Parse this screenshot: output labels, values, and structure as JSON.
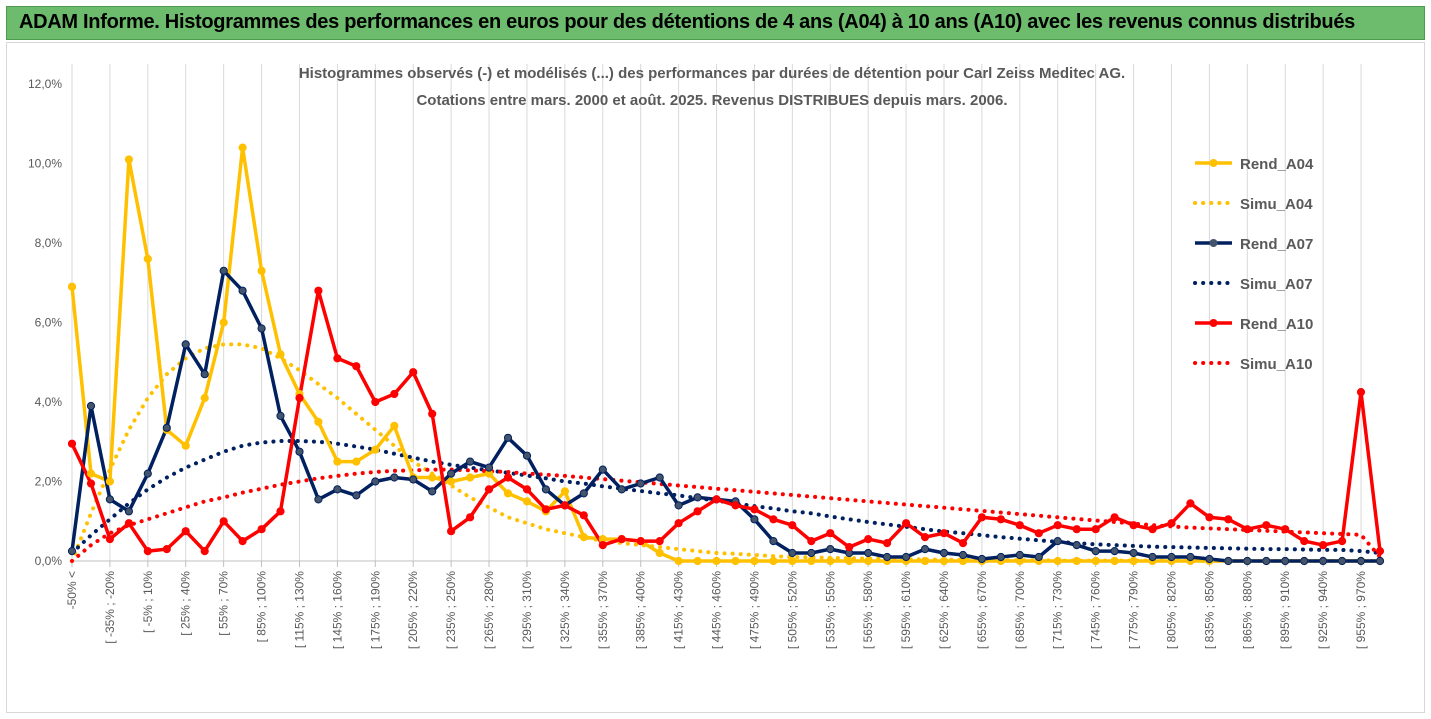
{
  "banner": {
    "title": "ADAM Informe. Histogrammes des performances en euros pour des détentions de 4 ans (A04) à 10 ans (A10) avec les revenus connus distribués"
  },
  "chart_data": {
    "type": "line",
    "title": "Histogrammes observés (-) et modélisés (...) des performances par durées de détention pour Carl Zeiss Meditec AG.",
    "subtitle": "Cotations entre mars. 2000 et août. 2025. Revenus DISTRIBUES depuis mars. 2006.",
    "xlabel": "",
    "ylabel": "",
    "ylim": [
      0,
      12
    ],
    "yticks": [
      "0,0%",
      "2,0%",
      "4,0%",
      "6,0%",
      "8,0%",
      "10,0%",
      "12,0%"
    ],
    "grid": "vertical",
    "legend_position": "right",
    "x_tick_labels": [
      "-50% <",
      "[ -35% ; -20%",
      "[ -5% ; 10%",
      "[ 25% ; 40%",
      "[ 55% ; 70%",
      "[ 85% ; 100%",
      "[ 115% ; 130%",
      "[ 145% ; 160%",
      "[ 175% ; 190%",
      "[ 205% ; 220%",
      "[ 235% ; 250%",
      "[ 265% ; 280%",
      "[ 295% ; 310%",
      "[ 325% ; 340%",
      "[ 355% ; 370%",
      "[ 385% ; 400%",
      "[ 415% ; 430%",
      "[ 445% ; 460%",
      "[ 475% ; 490%",
      "[ 505% ; 520%",
      "[ 535% ; 550%",
      "[ 565% ; 580%",
      "[ 595% ; 610%",
      "[ 625% ; 640%",
      "[ 655% ; 670%",
      "[ 685% ; 700%",
      "[ 715% ; 730%",
      "[ 745% ; 760%",
      "[ 775% ; 790%",
      "[ 805% ; 820%",
      "[ 835% ; 850%",
      "[ 865% ; 880%",
      "[ 895% ; 910%",
      "[ 925% ; 940%",
      "[ 955% ; 970%"
    ],
    "series": [
      {
        "name": "Rend_A04",
        "style": "solid",
        "marker": true,
        "color": "#ffc000",
        "values": [
          6.9,
          2.2,
          2.0,
          10.1,
          7.6,
          3.3,
          2.9,
          4.1,
          6.0,
          10.4,
          7.3,
          5.2,
          4.2,
          3.5,
          2.5,
          2.5,
          2.8,
          3.4,
          2.1,
          2.1,
          2.0,
          2.1,
          2.2,
          1.7,
          1.5,
          1.25,
          1.75,
          0.6,
          0.55,
          0.55,
          0.5,
          0.2,
          0.0,
          0.0,
          0.0,
          0.0,
          0.0,
          0.0,
          0.0,
          0.0,
          0.0,
          0.0,
          0.0,
          0.0,
          0.0,
          0.0,
          0.0,
          0.0,
          0.0,
          0.0,
          0.0,
          0.0,
          0.0,
          0.0,
          0.0,
          0.0,
          0.0,
          0.0,
          0.0,
          0.0,
          0.0,
          0.0,
          0.0,
          0.0,
          0.0,
          0.0,
          0.0,
          0.0,
          0.0,
          0.0
        ]
      },
      {
        "name": "Simu_A04",
        "style": "dotted",
        "marker": false,
        "color": "#ffc000",
        "values": [
          0.0,
          1.2,
          2.3,
          3.3,
          4.1,
          4.7,
          5.1,
          5.35,
          5.45,
          5.45,
          5.35,
          5.1,
          4.8,
          4.45,
          4.1,
          3.7,
          3.3,
          2.9,
          2.5,
          2.2,
          1.9,
          1.6,
          1.35,
          1.1,
          0.95,
          0.8,
          0.7,
          0.6,
          0.5,
          0.45,
          0.4,
          0.35,
          0.3,
          0.25,
          0.2,
          0.18,
          0.15,
          0.12,
          0.1,
          0.09,
          0.08,
          0.07,
          0.06,
          0.05,
          0.04,
          0.04,
          0.03,
          0.03,
          0.02,
          0.02,
          0.02,
          0.02,
          0.01,
          0.01,
          0.01,
          0.01,
          0.01,
          0.01,
          0.01,
          0.01,
          0.0,
          0.0,
          0.0,
          0.0,
          0.0,
          0.0,
          0.0,
          0.0,
          0.0,
          0.0
        ]
      },
      {
        "name": "Rend_A07",
        "style": "solid",
        "marker": true,
        "color": "#002060",
        "values": [
          0.25,
          3.9,
          1.55,
          1.25,
          2.2,
          3.35,
          5.45,
          4.7,
          7.3,
          6.8,
          5.85,
          3.65,
          2.75,
          1.55,
          1.8,
          1.65,
          2.0,
          2.1,
          2.05,
          1.75,
          2.2,
          2.5,
          2.35,
          3.1,
          2.65,
          1.8,
          1.4,
          1.7,
          2.3,
          1.8,
          1.95,
          2.1,
          1.4,
          1.6,
          1.55,
          1.5,
          1.05,
          0.5,
          0.2,
          0.2,
          0.3,
          0.2,
          0.2,
          0.1,
          0.1,
          0.3,
          0.2,
          0.15,
          0.05,
          0.1,
          0.15,
          0.1,
          0.5,
          0.4,
          0.25,
          0.25,
          0.2,
          0.1,
          0.1,
          0.1,
          0.05,
          0.0,
          0.0,
          0.0,
          0.0,
          0.0,
          0.0,
          0.0,
          0.0,
          0.0
        ]
      },
      {
        "name": "Simu_A07",
        "style": "dotted",
        "marker": false,
        "color": "#002060",
        "values": [
          0.2,
          0.65,
          1.05,
          1.45,
          1.8,
          2.1,
          2.35,
          2.55,
          2.75,
          2.9,
          2.98,
          3.02,
          3.02,
          3.0,
          2.95,
          2.88,
          2.8,
          2.7,
          2.6,
          2.5,
          2.42,
          2.35,
          2.28,
          2.22,
          2.15,
          2.08,
          2.0,
          1.95,
          1.88,
          1.82,
          1.76,
          1.7,
          1.65,
          1.58,
          1.52,
          1.45,
          1.38,
          1.32,
          1.25,
          1.2,
          1.12,
          1.05,
          0.98,
          0.92,
          0.86,
          0.8,
          0.74,
          0.7,
          0.65,
          0.6,
          0.56,
          0.52,
          0.48,
          0.45,
          0.42,
          0.4,
          0.38,
          0.36,
          0.35,
          0.34,
          0.33,
          0.32,
          0.31,
          0.3,
          0.3,
          0.29,
          0.28,
          0.28,
          0.25,
          0.2
        ]
      },
      {
        "name": "Rend_A10",
        "style": "solid",
        "marker": true,
        "color": "#ff0000",
        "values": [
          2.95,
          1.95,
          0.55,
          0.95,
          0.25,
          0.3,
          0.75,
          0.25,
          1.0,
          0.5,
          0.8,
          1.25,
          4.1,
          6.8,
          5.1,
          4.9,
          4.0,
          4.2,
          4.75,
          3.7,
          0.75,
          1.1,
          1.8,
          2.1,
          1.8,
          1.3,
          1.4,
          1.15,
          0.4,
          0.55,
          0.5,
          0.5,
          0.95,
          1.25,
          1.55,
          1.4,
          1.3,
          1.05,
          0.9,
          0.5,
          0.7,
          0.35,
          0.55,
          0.45,
          0.95,
          0.6,
          0.7,
          0.45,
          1.1,
          1.05,
          0.9,
          0.7,
          0.9,
          0.8,
          0.8,
          1.1,
          0.9,
          0.8,
          0.95,
          1.45,
          1.1,
          1.05,
          0.8,
          0.9,
          0.8,
          0.5,
          0.4,
          0.5,
          4.25,
          0.25
        ]
      },
      {
        "name": "Simu_A10",
        "style": "dotted",
        "marker": false,
        "color": "#ff0000",
        "values": [
          0.0,
          0.4,
          0.7,
          0.9,
          1.05,
          1.2,
          1.35,
          1.5,
          1.6,
          1.72,
          1.82,
          1.92,
          2.0,
          2.08,
          2.14,
          2.2,
          2.24,
          2.27,
          2.28,
          2.3,
          2.3,
          2.28,
          2.26,
          2.24,
          2.2,
          2.17,
          2.14,
          2.1,
          2.06,
          2.02,
          1.98,
          1.94,
          1.9,
          1.86,
          1.82,
          1.78,
          1.74,
          1.7,
          1.66,
          1.62,
          1.58,
          1.54,
          1.5,
          1.46,
          1.42,
          1.38,
          1.34,
          1.3,
          1.26,
          1.22,
          1.18,
          1.14,
          1.1,
          1.06,
          1.02,
          0.98,
          0.94,
          0.9,
          0.87,
          0.84,
          0.82,
          0.8,
          0.78,
          0.76,
          0.74,
          0.72,
          0.7,
          0.68,
          0.66,
          0.1
        ]
      }
    ]
  }
}
